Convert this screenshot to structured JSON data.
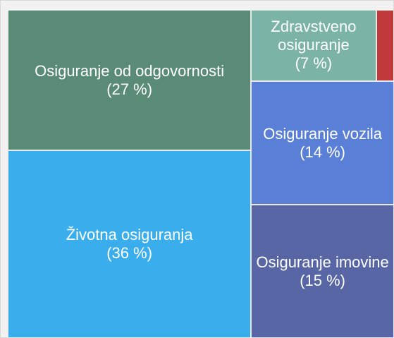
{
  "chart_data": {
    "type": "treemap",
    "categories": [
      "Osiguranje od odgovornosti",
      "Životna osiguranja",
      "Zdravstveno osiguranje",
      null,
      "Osiguranje vozila",
      "Osiguranje imovine"
    ],
    "values": [
      27,
      36,
      7,
      1,
      14,
      15
    ],
    "value_labels": [
      "(27 %)",
      "(36 %)",
      "(7 %)",
      null,
      "(14 %)",
      "(15 %)"
    ],
    "colors": [
      "#5a8b77",
      "#3aaeec",
      "#7bb3a6",
      "#c0393b",
      "#5a7fd6",
      "#5866a6"
    ]
  }
}
